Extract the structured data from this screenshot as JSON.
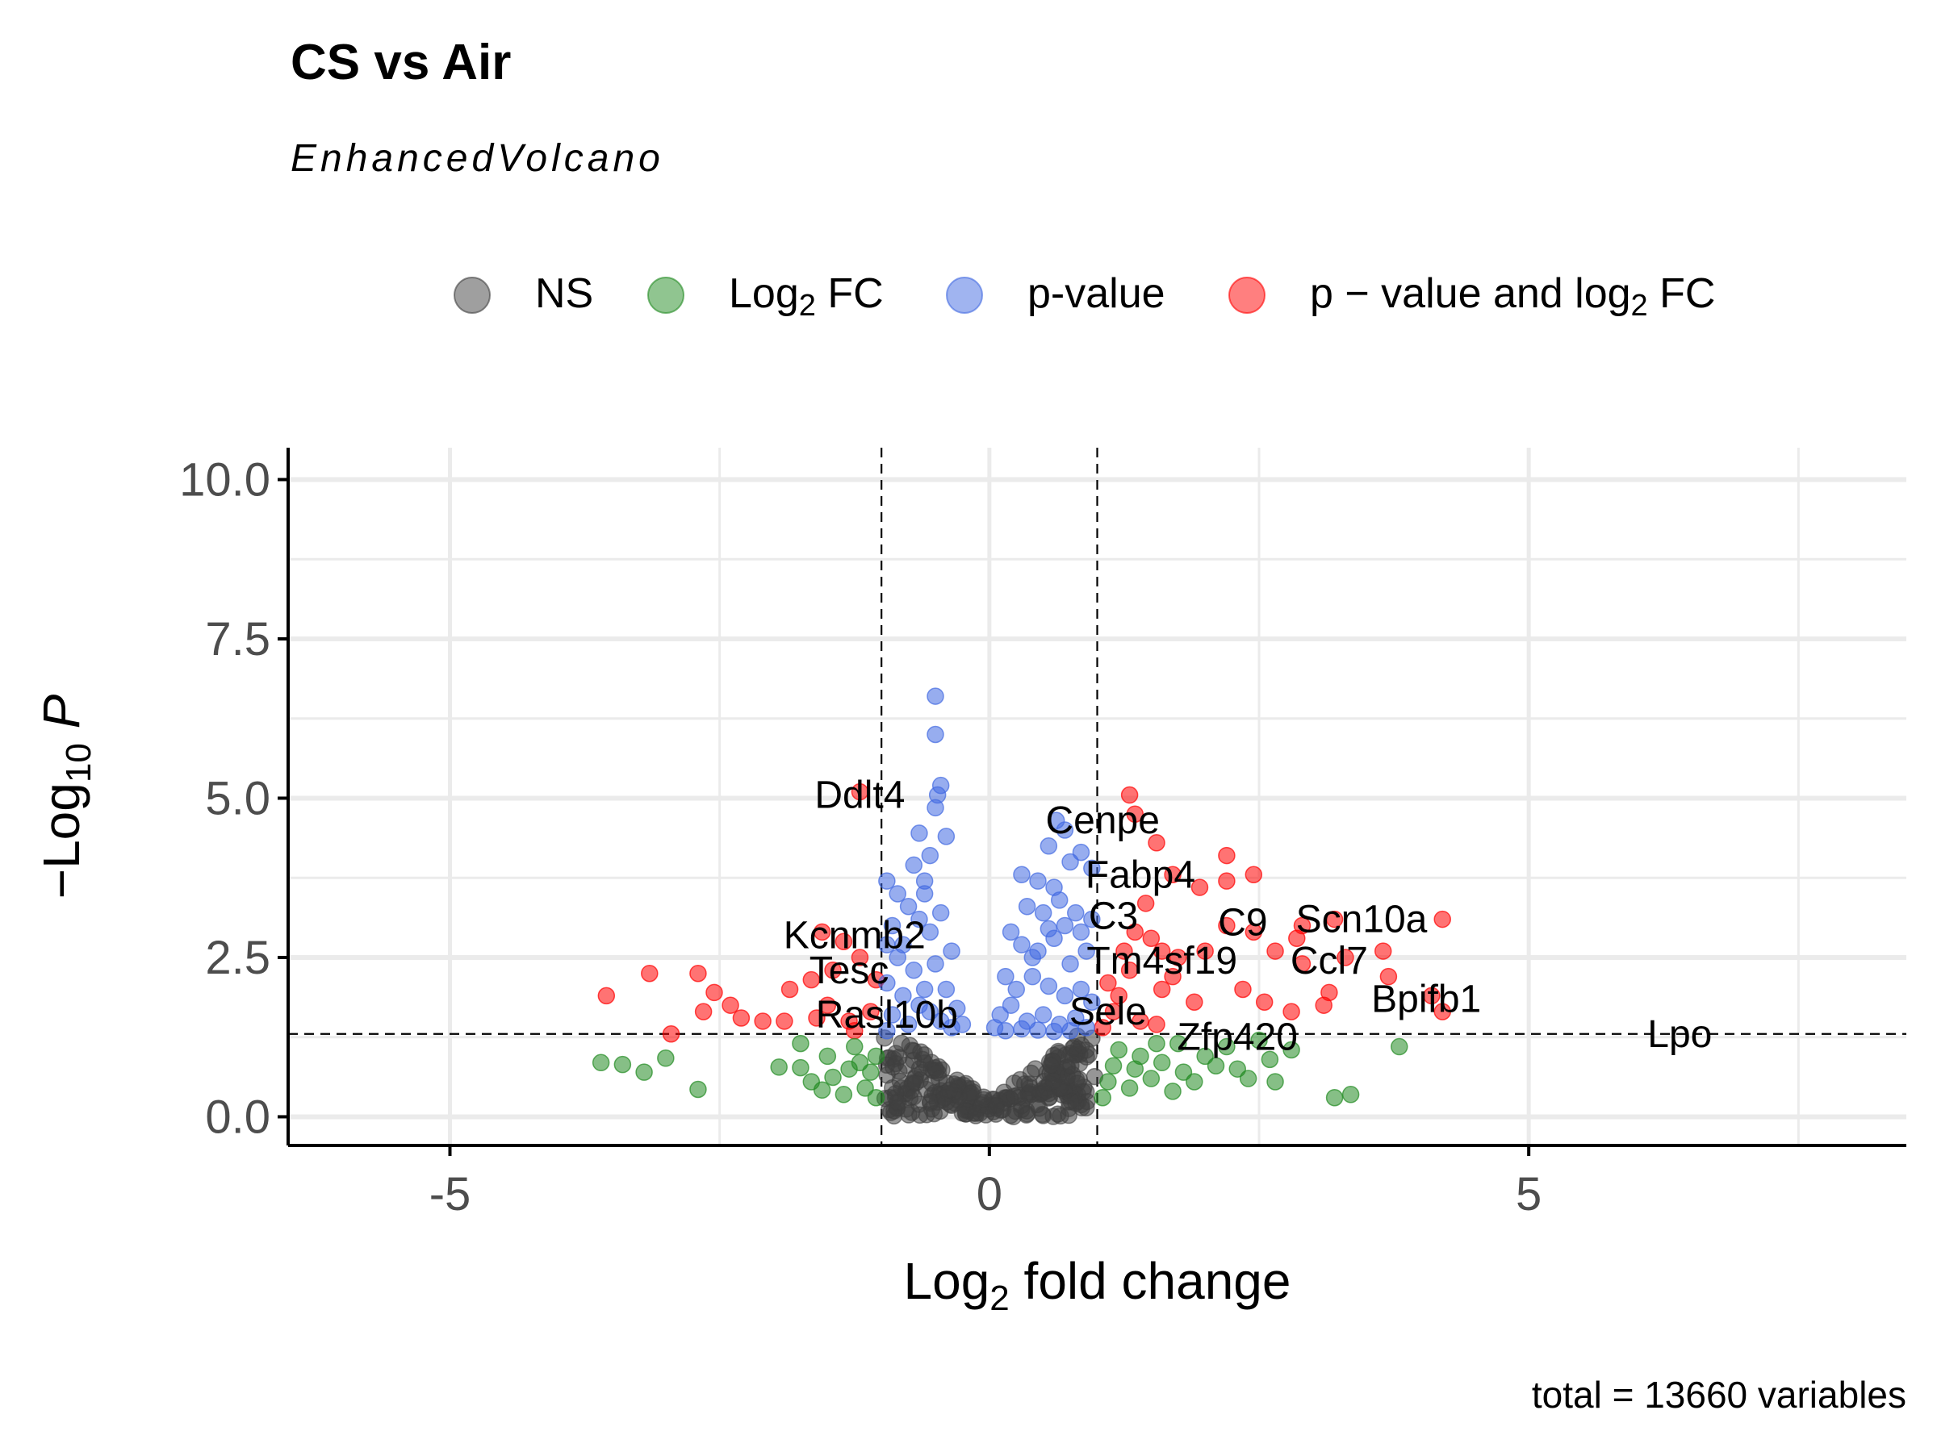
{
  "chart_data": {
    "type": "scatter",
    "title": "CS vs Air",
    "subtitle": "EnhancedVolcano",
    "caption": "total = 13660 variables",
    "xlabel": {
      "base": "Log",
      "sub": "2",
      "rest": " fold change"
    },
    "ylabel": {
      "base": "−Log",
      "sub": "10",
      "rest": " P"
    },
    "xlim": [
      -6.5,
      8.5
    ],
    "ylim": [
      -0.45,
      10.5
    ],
    "x_ticks": [
      -5,
      0,
      5
    ],
    "x_tick_labels": [
      "-5",
      "0",
      "5"
    ],
    "y_ticks": [
      0,
      2.5,
      5,
      7.5,
      10
    ],
    "y_tick_labels": [
      "0.0",
      "2.5",
      "5.0",
      "7.5",
      "10.0"
    ],
    "grid": true,
    "legend_position": "top",
    "cutoffs": {
      "log2fc": [
        -1,
        1
      ],
      "neg_log10_p": 1.3
    },
    "colors": {
      "NS": "#404040",
      "Log2 FC": "#228b22",
      "p-value": "#4169e1",
      "p-value and log2 FC": "#ff0000"
    },
    "legend": [
      {
        "key": "NS",
        "parts": [
          {
            "t": "NS"
          }
        ]
      },
      {
        "key": "Log2 FC",
        "parts": [
          {
            "t": "Log"
          },
          {
            "t": "2",
            "sub": true
          },
          {
            "t": " FC"
          }
        ]
      },
      {
        "key": "p-value",
        "parts": [
          {
            "t": "p-value"
          }
        ]
      },
      {
        "key": "p-value and log2 FC",
        "parts": [
          {
            "t": "p − value and log"
          },
          {
            "t": "2",
            "sub": true
          },
          {
            "t": " FC"
          }
        ]
      }
    ],
    "series": [
      {
        "key": "p-value and log2 FC",
        "points": [
          [
            1.3,
            5.05
          ],
          [
            1.35,
            4.75
          ],
          [
            1.55,
            4.3
          ],
          [
            1.7,
            3.8
          ],
          [
            1.95,
            3.6
          ],
          [
            2.2,
            4.1
          ],
          [
            2.2,
            3.7
          ],
          [
            2.45,
            3.8
          ],
          [
            2.2,
            3.0
          ],
          [
            2.45,
            2.9
          ],
          [
            2.85,
            2.8
          ],
          [
            2.9,
            3.0
          ],
          [
            3.2,
            3.1
          ],
          [
            4.2,
            3.1
          ],
          [
            2.65,
            2.6
          ],
          [
            2.9,
            2.4
          ],
          [
            3.3,
            2.5
          ],
          [
            3.65,
            2.6
          ],
          [
            3.7,
            2.2
          ],
          [
            4.1,
            1.9
          ],
          [
            4.2,
            1.65
          ],
          [
            2.35,
            2.0
          ],
          [
            2.55,
            1.8
          ],
          [
            2.8,
            1.65
          ],
          [
            3.1,
            1.75
          ],
          [
            3.15,
            1.95
          ],
          [
            1.3,
            2.3
          ],
          [
            1.5,
            2.8
          ],
          [
            1.6,
            2.0
          ],
          [
            1.75,
            2.5
          ],
          [
            1.9,
            1.8
          ],
          [
            1.2,
            1.9
          ],
          [
            1.4,
            1.5
          ],
          [
            1.15,
            1.65
          ],
          [
            1.55,
            1.45
          ],
          [
            1.25,
            2.6
          ],
          [
            1.35,
            2.9
          ],
          [
            1.05,
            1.4
          ],
          [
            1.1,
            2.1
          ],
          [
            1.7,
            2.2
          ],
          [
            2.0,
            2.6
          ],
          [
            1.45,
            3.35
          ],
          [
            1.6,
            2.6
          ],
          [
            -1.2,
            5.1
          ],
          [
            -1.55,
            2.9
          ],
          [
            -1.35,
            2.75
          ],
          [
            -1.2,
            2.5
          ],
          [
            -1.45,
            2.3
          ],
          [
            -1.65,
            2.15
          ],
          [
            -1.85,
            2.0
          ],
          [
            -1.5,
            1.75
          ],
          [
            -1.3,
            1.5
          ],
          [
            -1.1,
            1.65
          ],
          [
            -1.25,
            1.35
          ],
          [
            -1.6,
            1.55
          ],
          [
            -1.9,
            1.5
          ],
          [
            -2.1,
            1.5
          ],
          [
            -2.3,
            1.55
          ],
          [
            -2.4,
            1.75
          ],
          [
            -2.55,
            1.95
          ],
          [
            -2.65,
            1.65
          ],
          [
            -2.7,
            2.25
          ],
          [
            -3.15,
            2.25
          ],
          [
            -3.55,
            1.9
          ],
          [
            -2.95,
            1.3
          ],
          [
            -1.05,
            2.15
          ]
        ]
      },
      {
        "key": "Log2 FC",
        "points": [
          [
            -3.6,
            0.85
          ],
          [
            -3.4,
            0.82
          ],
          [
            -3.2,
            0.7
          ],
          [
            -3.0,
            0.92
          ],
          [
            -2.7,
            0.43
          ],
          [
            -1.95,
            0.78
          ],
          [
            -1.75,
            0.77
          ],
          [
            -1.75,
            1.15
          ],
          [
            -1.65,
            0.55
          ],
          [
            -1.55,
            0.42
          ],
          [
            -1.45,
            0.62
          ],
          [
            -1.3,
            0.75
          ],
          [
            -1.25,
            1.1
          ],
          [
            -1.15,
            0.45
          ],
          [
            -1.1,
            0.7
          ],
          [
            -1.05,
            0.95
          ],
          [
            -1.35,
            0.35
          ],
          [
            -1.5,
            0.95
          ],
          [
            -1.2,
            0.85
          ],
          [
            -1.05,
            0.3
          ],
          [
            1.05,
            0.3
          ],
          [
            1.1,
            0.55
          ],
          [
            1.15,
            0.8
          ],
          [
            1.2,
            1.05
          ],
          [
            1.3,
            0.45
          ],
          [
            1.35,
            0.75
          ],
          [
            1.4,
            0.95
          ],
          [
            1.5,
            0.6
          ],
          [
            1.6,
            0.85
          ],
          [
            1.7,
            0.4
          ],
          [
            1.75,
            1.15
          ],
          [
            1.8,
            0.7
          ],
          [
            1.9,
            0.55
          ],
          [
            2.0,
            0.95
          ],
          [
            2.1,
            0.8
          ],
          [
            2.2,
            1.1
          ],
          [
            2.3,
            0.75
          ],
          [
            2.4,
            0.6
          ],
          [
            2.5,
            1.2
          ],
          [
            2.6,
            0.9
          ],
          [
            2.8,
            1.05
          ],
          [
            3.2,
            0.3
          ],
          [
            3.35,
            0.35
          ],
          [
            3.8,
            1.1
          ],
          [
            1.55,
            1.15
          ],
          [
            2.65,
            0.55
          ]
        ]
      },
      {
        "key": "p-value",
        "points": [
          [
            -0.5,
            6.6
          ],
          [
            -0.5,
            6.0
          ],
          [
            -0.45,
            5.2
          ],
          [
            -0.48,
            5.05
          ],
          [
            -0.5,
            4.85
          ],
          [
            -0.4,
            4.4
          ],
          [
            -0.65,
            4.45
          ],
          [
            -0.55,
            4.1
          ],
          [
            -0.7,
            3.95
          ],
          [
            -0.6,
            3.7
          ],
          [
            -0.95,
            3.7
          ],
          [
            -0.85,
            3.5
          ],
          [
            -0.75,
            3.3
          ],
          [
            -0.9,
            3.0
          ],
          [
            -0.95,
            2.7
          ],
          [
            -0.85,
            2.5
          ],
          [
            -0.7,
            2.3
          ],
          [
            -0.95,
            2.1
          ],
          [
            -0.8,
            1.9
          ],
          [
            -0.65,
            1.75
          ],
          [
            -0.9,
            1.6
          ],
          [
            -0.75,
            1.45
          ],
          [
            -0.55,
            1.65
          ],
          [
            -0.45,
            1.5
          ],
          [
            -0.35,
            1.4
          ],
          [
            -0.6,
            2.0
          ],
          [
            -0.5,
            2.4
          ],
          [
            -0.4,
            2.0
          ],
          [
            -0.3,
            1.7
          ],
          [
            -0.55,
            2.9
          ],
          [
            -0.45,
            3.2
          ],
          [
            -0.35,
            2.6
          ],
          [
            -0.65,
            3.1
          ],
          [
            -0.8,
            2.7
          ],
          [
            -0.25,
            1.45
          ],
          [
            -0.95,
            1.35
          ],
          [
            -0.6,
            3.5
          ],
          [
            0.62,
            4.65
          ],
          [
            0.7,
            4.5
          ],
          [
            0.85,
            4.15
          ],
          [
            0.55,
            4.25
          ],
          [
            0.75,
            4.0
          ],
          [
            0.95,
            3.9
          ],
          [
            0.45,
            3.7
          ],
          [
            0.6,
            3.6
          ],
          [
            0.3,
            3.8
          ],
          [
            0.35,
            3.3
          ],
          [
            0.5,
            3.2
          ],
          [
            0.65,
            3.4
          ],
          [
            0.8,
            3.2
          ],
          [
            0.95,
            3.1
          ],
          [
            0.2,
            2.9
          ],
          [
            0.3,
            2.7
          ],
          [
            0.45,
            2.6
          ],
          [
            0.6,
            2.8
          ],
          [
            0.75,
            2.4
          ],
          [
            0.9,
            2.6
          ],
          [
            0.15,
            2.2
          ],
          [
            0.25,
            2.0
          ],
          [
            0.4,
            2.2
          ],
          [
            0.55,
            2.05
          ],
          [
            0.7,
            1.9
          ],
          [
            0.85,
            2.0
          ],
          [
            0.95,
            1.8
          ],
          [
            0.1,
            1.6
          ],
          [
            0.2,
            1.75
          ],
          [
            0.35,
            1.5
          ],
          [
            0.5,
            1.6
          ],
          [
            0.65,
            1.45
          ],
          [
            0.8,
            1.55
          ],
          [
            0.9,
            1.4
          ],
          [
            0.05,
            1.4
          ],
          [
            0.15,
            1.35
          ],
          [
            0.3,
            1.38
          ],
          [
            0.45,
            1.36
          ],
          [
            0.6,
            1.34
          ],
          [
            0.75,
            1.35
          ],
          [
            0.4,
            2.5
          ],
          [
            0.55,
            2.95
          ],
          [
            0.7,
            3.0
          ],
          [
            0.85,
            2.9
          ]
        ]
      }
    ],
    "labels": [
      {
        "text": "Ddlt4",
        "x": -1.2,
        "y": 5.05
      },
      {
        "text": "Cenpe",
        "x": 1.05,
        "y": 4.65
      },
      {
        "text": "Fabp4",
        "x": 1.4,
        "y": 3.8
      },
      {
        "text": "C3",
        "x": 1.15,
        "y": 3.15
      },
      {
        "text": "C9",
        "x": 2.35,
        "y": 3.05
      },
      {
        "text": "Scn10a",
        "x": 3.45,
        "y": 3.1
      },
      {
        "text": "Ccl7",
        "x": 3.15,
        "y": 2.45
      },
      {
        "text": "Tm4sf19",
        "x": 1.6,
        "y": 2.45
      },
      {
        "text": "Bpifb1",
        "x": 4.05,
        "y": 1.85
      },
      {
        "text": "Sele",
        "x": 1.1,
        "y": 1.65
      },
      {
        "text": "Zfp420",
        "x": 2.3,
        "y": 1.25
      },
      {
        "text": "Lpo",
        "x": 6.4,
        "y": 1.3
      },
      {
        "text": "Kcnmb2",
        "x": -1.25,
        "y": 2.85
      },
      {
        "text": "Tesc",
        "x": -1.3,
        "y": 2.3
      },
      {
        "text": "Rasl10b",
        "x": -0.95,
        "y": 1.6
      }
    ]
  }
}
